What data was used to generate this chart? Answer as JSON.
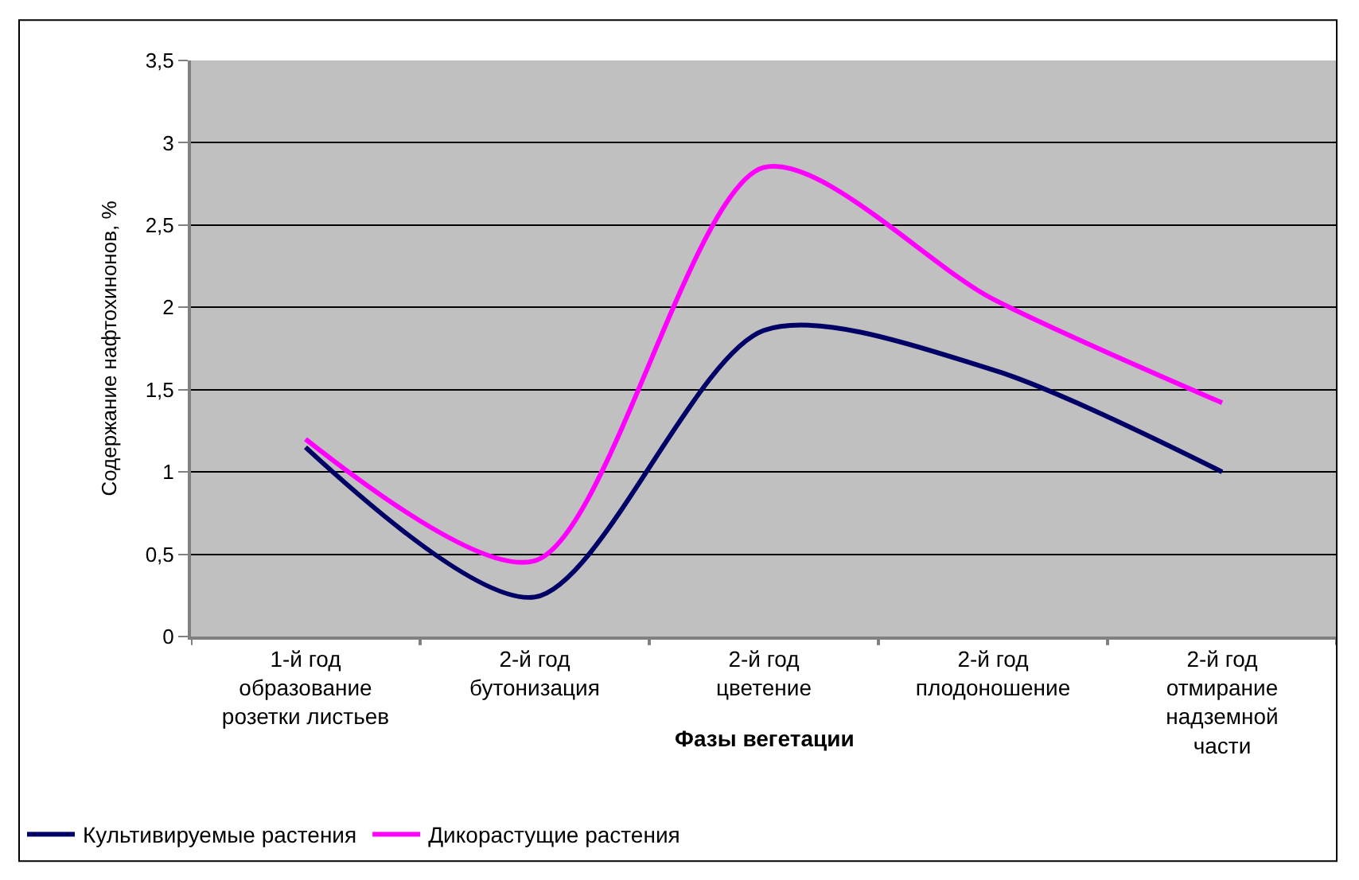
{
  "chart_data": {
    "type": "line",
    "xlabel": "Фазы вегетации",
    "ylabel": "Содержание нафтохинонов, %",
    "categories": [
      "1-й год\nобразование\nрозетки листьев",
      "2-й год\nбутонизация",
      "2-й год\nцветение",
      "2-й год\nплодоношение",
      "2-й год\nотмирание\nнадземной\nчасти"
    ],
    "series": [
      {
        "name": "Культивируемые растения",
        "color": "#000066",
        "values": [
          1.15,
          0.24,
          1.86,
          1.62,
          1.0
        ]
      },
      {
        "name": "Дикорастущие растения",
        "color": "#ff00ff",
        "values": [
          1.2,
          0.46,
          2.85,
          2.05,
          1.42
        ]
      }
    ],
    "ylim": [
      0,
      3.5
    ],
    "yticks": [
      0,
      {
        "value": 0.5,
        "label": "0,5"
      },
      1,
      {
        "value": 1.5,
        "label": "1,5"
      },
      2,
      {
        "value": 2.5,
        "label": "2,5"
      },
      3,
      {
        "value": 3.5,
        "label": "3,5"
      }
    ],
    "grid": "y",
    "legend": "bottom left",
    "marker": "none",
    "line_style": "solid"
  }
}
